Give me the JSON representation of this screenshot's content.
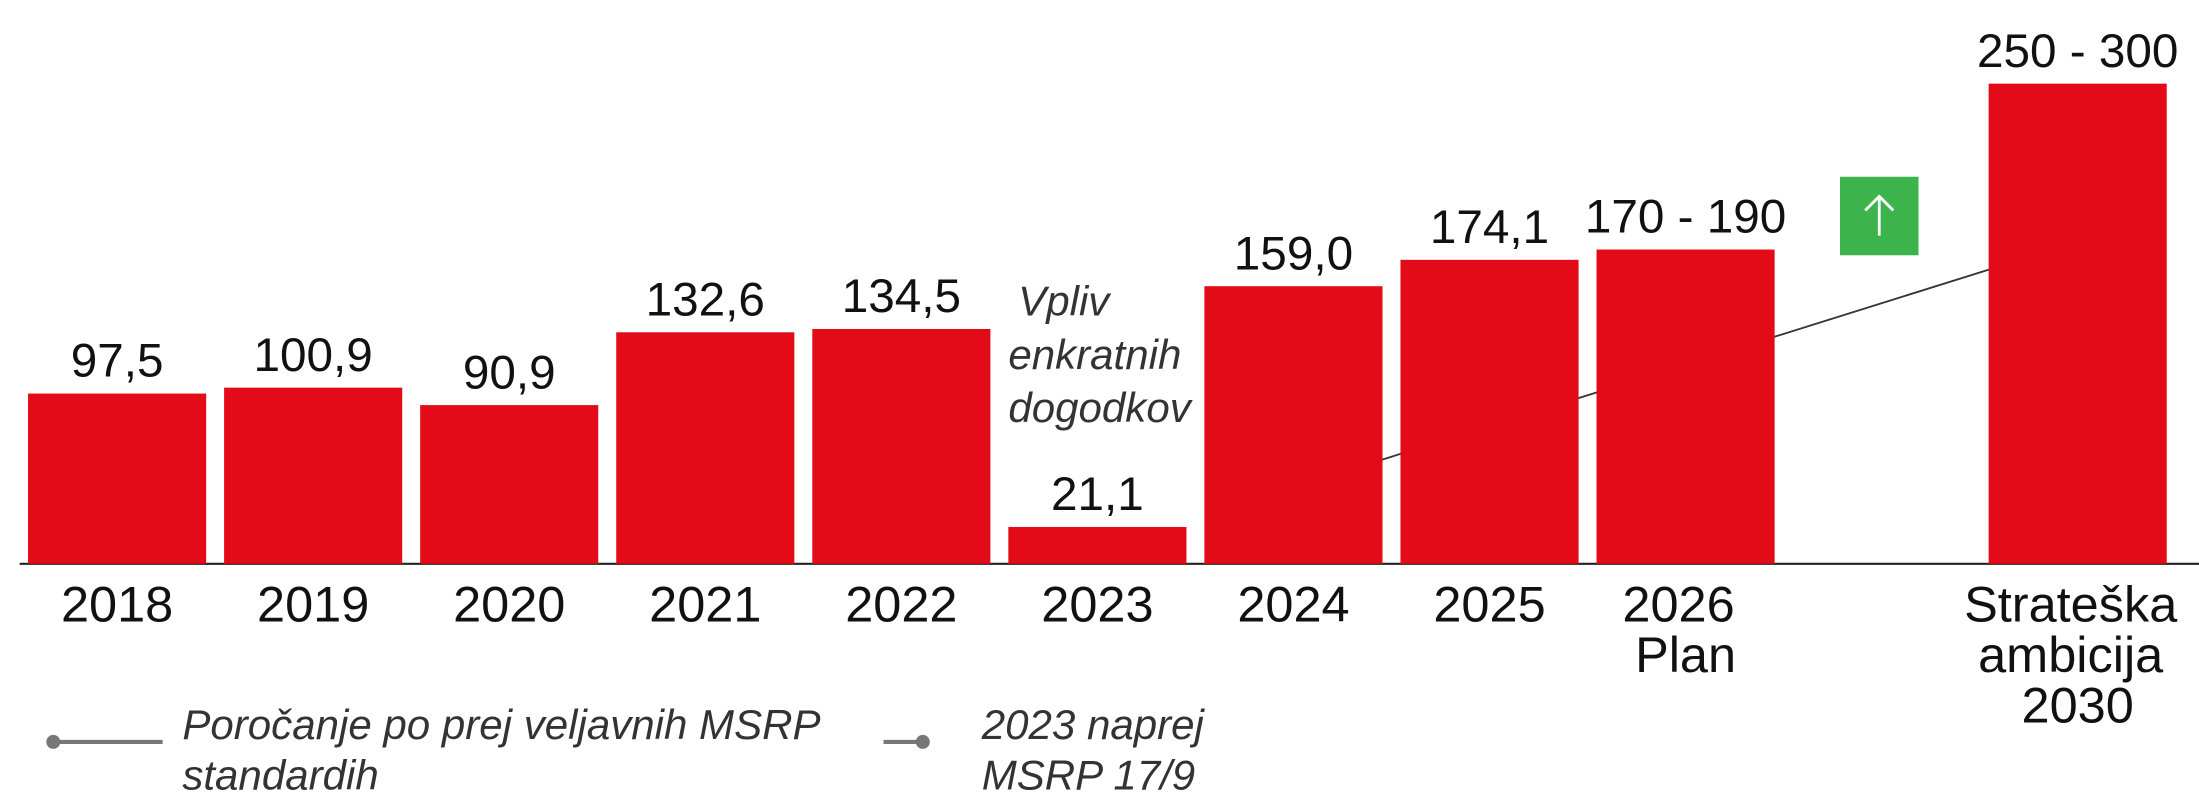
{
  "chart_data": {
    "type": "bar",
    "categories": [
      "2018",
      "2019",
      "2020",
      "2021",
      "2022",
      "2023",
      "2024",
      "2025",
      "2026 Plan",
      null,
      "Strateška ambicija 2030"
    ],
    "values": [
      97.5,
      100.9,
      90.9,
      132.6,
      134.5,
      21.1,
      159.0,
      174.1,
      180,
      null,
      275
    ],
    "value_labels": [
      "97,5",
      "100,9",
      "90,9",
      "132,6",
      "134,5",
      "21,1",
      "159,0",
      "174,1",
      "170 - 190",
      null,
      "250 - 300"
    ],
    "color": "#e30b17",
    "ylim": [
      0,
      320
    ],
    "annotation": "Vpliv enkratnih dogodkov",
    "legend": [
      [
        "Poročanje po prej veljavnih MSRP",
        "standardih"
      ],
      [
        "2023 naprej",
        "MSRP 17/9"
      ]
    ]
  }
}
